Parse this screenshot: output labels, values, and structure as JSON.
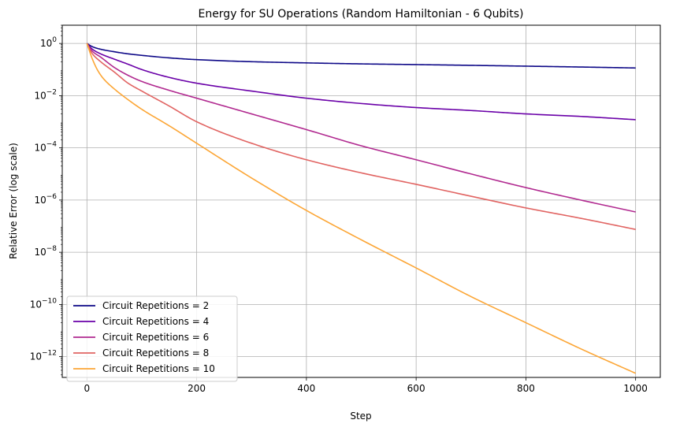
{
  "chart_data": {
    "type": "line",
    "title": "Energy for SU Operations (Random Hamiltonian - 6 Qubits)",
    "xlabel": "Step",
    "ylabel": "Relative Error (log scale)",
    "xlim": [
      -45,
      1045
    ],
    "ylim": [
      1.6e-13,
      5.0
    ],
    "yscale": "log",
    "grid": true,
    "legend_position": "lower-left",
    "xticks": [
      0,
      200,
      400,
      600,
      800,
      1000
    ],
    "yticks": [
      {
        "base": "10",
        "exp": "0",
        "value": 1
      },
      {
        "base": "10",
        "exp": "−2",
        "value": 0.01
      },
      {
        "base": "10",
        "exp": "−4",
        "value": 0.0001
      },
      {
        "base": "10",
        "exp": "−6",
        "value": 1e-06
      },
      {
        "base": "10",
        "exp": "−8",
        "value": 1e-08
      },
      {
        "base": "10",
        "exp": "−10",
        "value": 1e-10
      },
      {
        "base": "10",
        "exp": "−12",
        "value": 1e-12
      }
    ],
    "series": [
      {
        "name": "Circuit Repetitions = 2",
        "color": "#0d0887",
        "x": [
          0,
          10,
          25,
          50,
          75,
          100,
          150,
          200,
          300,
          400,
          500,
          600,
          700,
          800,
          900,
          1000
        ],
        "y": [
          1.0,
          0.75,
          0.6,
          0.48,
          0.4,
          0.35,
          0.28,
          0.24,
          0.2,
          0.18,
          0.165,
          0.155,
          0.145,
          0.135,
          0.125,
          0.115
        ]
      },
      {
        "name": "Circuit Repetitions = 4",
        "color": "#6a00a8",
        "x": [
          0,
          10,
          25,
          50,
          75,
          100,
          150,
          200,
          300,
          400,
          500,
          600,
          700,
          800,
          900,
          1000
        ],
        "y": [
          1.0,
          0.6,
          0.4,
          0.25,
          0.16,
          0.1,
          0.05,
          0.03,
          0.015,
          0.008,
          0.005,
          0.0035,
          0.0027,
          0.002,
          0.0016,
          0.0012
        ]
      },
      {
        "name": "Circuit Repetitions = 6",
        "color": "#b12a90",
        "x": [
          0,
          10,
          25,
          50,
          75,
          100,
          150,
          200,
          300,
          400,
          500,
          600,
          700,
          800,
          900,
          1000
        ],
        "y": [
          1.0,
          0.5,
          0.3,
          0.12,
          0.06,
          0.035,
          0.016,
          0.008,
          0.002,
          0.0005,
          0.00012,
          3.5e-05,
          1e-05,
          3e-06,
          1e-06,
          3.5e-07
        ]
      },
      {
        "name": "Circuit Repetitions = 8",
        "color": "#e16462",
        "x": [
          0,
          10,
          25,
          50,
          75,
          100,
          150,
          200,
          300,
          400,
          500,
          600,
          700,
          800,
          900,
          1000
        ],
        "y": [
          1.0,
          0.4,
          0.2,
          0.08,
          0.03,
          0.015,
          0.004,
          0.001,
          0.00015,
          3.5e-05,
          1.1e-05,
          4e-06,
          1.4e-06,
          5e-07,
          2e-07,
          7.5e-08
        ]
      },
      {
        "name": "Circuit Repetitions = 10",
        "color": "#fca636",
        "x": [
          0,
          10,
          20,
          30,
          50,
          75,
          100,
          150,
          200,
          300,
          400,
          500,
          600,
          700,
          800,
          900,
          1000
        ],
        "y": [
          1.0,
          0.25,
          0.09,
          0.045,
          0.018,
          0.007,
          0.003,
          0.0007,
          0.00015,
          7e-06,
          4e-07,
          3e-08,
          2.5e-09,
          2e-10,
          2e-11,
          2e-12,
          2.3e-13
        ]
      }
    ]
  }
}
